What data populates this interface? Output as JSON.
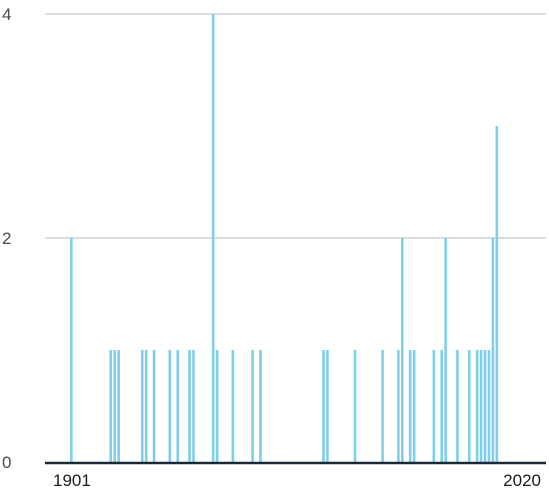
{
  "chart_data": {
    "type": "bar",
    "x_domain": [
      1901,
      2020
    ],
    "x_tick_labels": [
      "1901",
      "2020"
    ],
    "y_ticks": [
      0,
      2,
      4
    ],
    "ylim": [
      0,
      4
    ],
    "grid": true,
    "colors": {
      "bar": "#7ecfea",
      "grid": "#b9b9b9",
      "axis": "#1c2a38"
    },
    "points": [
      {
        "x": 1907,
        "y": 2
      },
      {
        "x": 1917,
        "y": 1
      },
      {
        "x": 1918,
        "y": 1
      },
      {
        "x": 1919,
        "y": 1
      },
      {
        "x": 1925,
        "y": 1
      },
      {
        "x": 1926,
        "y": 1
      },
      {
        "x": 1928,
        "y": 1
      },
      {
        "x": 1932,
        "y": 1
      },
      {
        "x": 1934,
        "y": 1
      },
      {
        "x": 1937,
        "y": 1
      },
      {
        "x": 1938,
        "y": 1
      },
      {
        "x": 1943,
        "y": 4
      },
      {
        "x": 1944,
        "y": 1
      },
      {
        "x": 1948,
        "y": 1
      },
      {
        "x": 1953,
        "y": 1
      },
      {
        "x": 1955,
        "y": 1
      },
      {
        "x": 1971,
        "y": 1
      },
      {
        "x": 1972,
        "y": 1
      },
      {
        "x": 1979,
        "y": 1
      },
      {
        "x": 1986,
        "y": 1
      },
      {
        "x": 1990,
        "y": 1
      },
      {
        "x": 1991,
        "y": 2
      },
      {
        "x": 1993,
        "y": 1
      },
      {
        "x": 1994,
        "y": 1
      },
      {
        "x": 1999,
        "y": 1
      },
      {
        "x": 2001,
        "y": 1
      },
      {
        "x": 2002,
        "y": 2
      },
      {
        "x": 2005,
        "y": 1
      },
      {
        "x": 2008,
        "y": 1
      },
      {
        "x": 2010,
        "y": 1
      },
      {
        "x": 2011,
        "y": 1
      },
      {
        "x": 2012,
        "y": 1
      },
      {
        "x": 2013,
        "y": 1
      },
      {
        "x": 2014,
        "y": 2
      },
      {
        "x": 2015,
        "y": 3
      }
    ]
  }
}
